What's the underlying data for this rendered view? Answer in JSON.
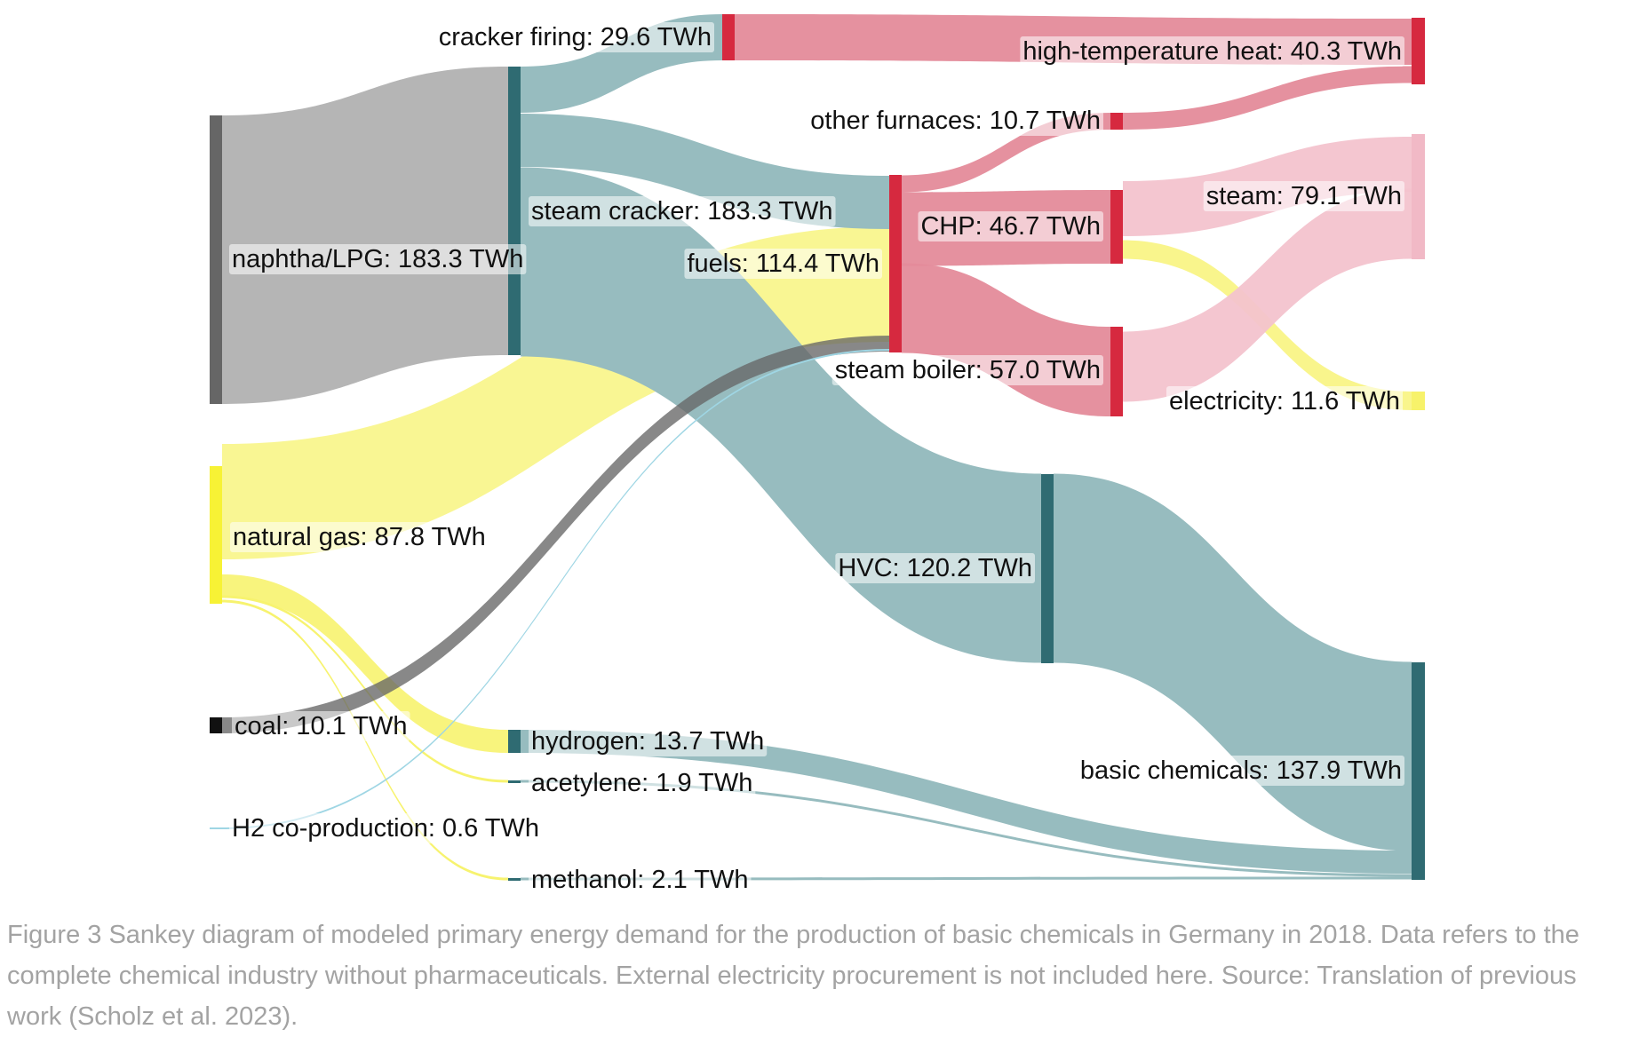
{
  "diagram": {
    "type": "sankey",
    "unit": "TWh",
    "colors": {
      "fossil_gray": "#b5b5b5",
      "natural_gas_yellow": "#f5f25a",
      "process_teal": "#2f6b72",
      "process_link_teal": "#97bcbf",
      "heat_red": "#d6293f",
      "heat_link_pink": "#e48b9a",
      "steam_link_pink": "#f3c3ce",
      "electricity_yellow": "#f7f26a",
      "h2_coprod_cyan": "#9fd6e4"
    },
    "nodes": [
      {
        "id": "naphtha",
        "label": "naphtha/LPG: 183.3 TWh"
      },
      {
        "id": "natural_gas",
        "label": "natural gas: 87.8 TWh"
      },
      {
        "id": "coal",
        "label": "coal: 10.1 TWh"
      },
      {
        "id": "h2_coprod",
        "label": "H2 co-production: 0.6 TWh"
      },
      {
        "id": "steam_cracker",
        "label": "steam cracker: 183.3 TWh"
      },
      {
        "id": "cracker_firing",
        "label": "cracker firing: 29.6 TWh"
      },
      {
        "id": "hydrogen",
        "label": "hydrogen: 13.7 TWh"
      },
      {
        "id": "acetylene",
        "label": "acetylene: 1.9 TWh"
      },
      {
        "id": "methanol",
        "label": "methanol: 2.1 TWh"
      },
      {
        "id": "fuels",
        "label": "fuels: 114.4 TWh"
      },
      {
        "id": "other_furnaces",
        "label": "other furnaces: 10.7 TWh"
      },
      {
        "id": "hvc",
        "label": "HVC: 120.2 TWh"
      },
      {
        "id": "chp",
        "label": "CHP: 46.7 TWh"
      },
      {
        "id": "steam_boiler",
        "label": "steam boiler: 57.0 TWh"
      },
      {
        "id": "high_temp_heat",
        "label": "high-temperature heat: 40.3 TWh"
      },
      {
        "id": "steam",
        "label": "steam: 79.1 TWh"
      },
      {
        "id": "electricity",
        "label": "electricity: 11.6 TWh"
      },
      {
        "id": "basic_chemicals",
        "label": "basic chemicals: 137.9 TWh"
      }
    ],
    "links": [
      {
        "source": "naphtha",
        "target": "steam_cracker",
        "value": 183.3
      },
      {
        "source": "steam_cracker",
        "target": "cracker_firing",
        "value": 29.6
      },
      {
        "source": "steam_cracker",
        "target": "fuels",
        "value": 33.5
      },
      {
        "source": "steam_cracker",
        "target": "hvc",
        "value": 120.2
      },
      {
        "source": "natural_gas",
        "target": "fuels",
        "value": 70.1
      },
      {
        "source": "natural_gas",
        "target": "hydrogen",
        "value": 13.7
      },
      {
        "source": "natural_gas",
        "target": "acetylene",
        "value": 1.9
      },
      {
        "source": "natural_gas",
        "target": "methanol",
        "value": 2.1
      },
      {
        "source": "coal",
        "target": "fuels",
        "value": 10.1
      },
      {
        "source": "h2_coprod",
        "target": "fuels",
        "value": 0.6
      },
      {
        "source": "cracker_firing",
        "target": "high_temp_heat",
        "value": 29.6
      },
      {
        "source": "fuels",
        "target": "other_furnaces",
        "value": 10.7
      },
      {
        "source": "fuels",
        "target": "chp",
        "value": 46.7
      },
      {
        "source": "fuels",
        "target": "steam_boiler",
        "value": 57.0
      },
      {
        "source": "other_furnaces",
        "target": "high_temp_heat",
        "value": 10.7
      },
      {
        "source": "chp",
        "target": "steam",
        "value": 35.1
      },
      {
        "source": "chp",
        "target": "electricity",
        "value": 11.6
      },
      {
        "source": "steam_boiler",
        "target": "steam",
        "value": 44.0
      },
      {
        "source": "hvc",
        "target": "basic_chemicals",
        "value": 120.2
      },
      {
        "source": "hydrogen",
        "target": "basic_chemicals",
        "value": 13.7
      },
      {
        "source": "acetylene",
        "target": "basic_chemicals",
        "value": 1.9
      },
      {
        "source": "methanol",
        "target": "basic_chemicals",
        "value": 2.1
      }
    ]
  },
  "caption": "Figure 3 Sankey diagram of modeled primary energy demand for the production of basic chemicals in Germany in 2018. Data refers to the complete chemical industry without pharmaceuticals. External electricity procurement is not included here. Source: Translation of previous work (Scholz et al. 2023)."
}
